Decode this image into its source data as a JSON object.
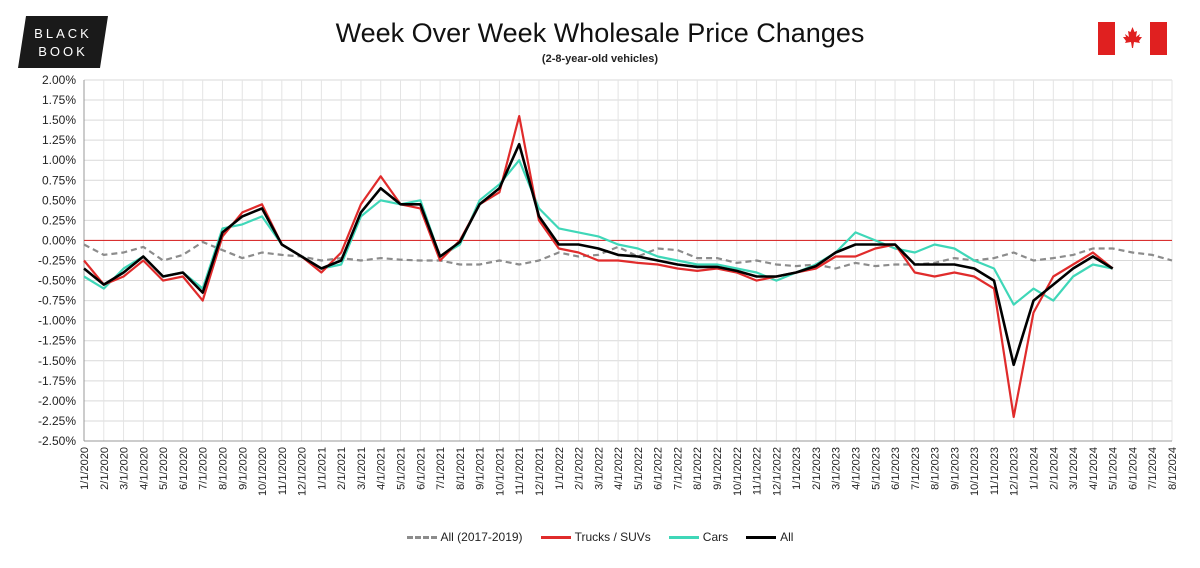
{
  "logo": {
    "line1": "BLACK",
    "line2": "BOOK"
  },
  "flag": "canada-flag-icon",
  "chart_data": {
    "type": "line",
    "title": "Week Over Week Wholesale Price Changes",
    "subtitle": "(2-8-year-old vehicles)",
    "ylim": [
      -2.5,
      2.0
    ],
    "yticks": [
      "2.00%",
      "1.75%",
      "1.50%",
      "1.25%",
      "1.00%",
      "0.75%",
      "0.50%",
      "0.25%",
      "0.00%",
      "-0.25%",
      "-0.50%",
      "-0.75%",
      "-1.00%",
      "-1.25%",
      "-1.50%",
      "-1.75%",
      "-2.00%",
      "-2.25%",
      "-2.50%"
    ],
    "xticks": [
      "1/1/2020",
      "2/1/2020",
      "3/1/2020",
      "4/1/2020",
      "5/1/2020",
      "6/1/2020",
      "7/1/2020",
      "8/1/2020",
      "9/1/2020",
      "10/1/2020",
      "11/1/2020",
      "12/1/2020",
      "1/1/2021",
      "2/1/2021",
      "3/1/2021",
      "4/1/2021",
      "5/1/2021",
      "6/1/2021",
      "7/1/2021",
      "8/1/2021",
      "9/1/2021",
      "10/1/2021",
      "11/1/2021",
      "12/1/2021",
      "1/1/2022",
      "2/1/2022",
      "3/1/2022",
      "4/1/2022",
      "5/1/2022",
      "6/1/2022",
      "7/1/2022",
      "8/1/2022",
      "9/1/2022",
      "10/1/2022",
      "11/1/2022",
      "12/1/2022",
      "1/1/2023",
      "2/1/2023",
      "3/1/2023",
      "4/1/2023",
      "5/1/2023",
      "6/1/2023",
      "7/1/2023",
      "8/1/2023",
      "9/1/2023",
      "10/1/2023",
      "11/1/2023",
      "12/1/2023",
      "1/1/2024",
      "2/1/2024",
      "3/1/2024",
      "4/1/2024",
      "5/1/2024",
      "6/1/2024",
      "7/1/2024",
      "8/1/2024"
    ],
    "grid": true,
    "zero_line_color": "#d93030",
    "legend_position": "bottom",
    "series": [
      {
        "name": "All (2017-2019)",
        "color": "#8c8c8c",
        "dash": true,
        "x_start_month": 0,
        "values": [
          -0.05,
          -0.18,
          -0.15,
          -0.08,
          -0.25,
          -0.18,
          -0.02,
          -0.12,
          -0.22,
          -0.15,
          -0.18,
          -0.2,
          -0.25,
          -0.22,
          -0.25,
          -0.22,
          -0.24,
          -0.25,
          -0.25,
          -0.3,
          -0.3,
          -0.25,
          -0.3,
          -0.25,
          -0.15,
          -0.2,
          -0.18,
          -0.08,
          -0.2,
          -0.1,
          -0.12,
          -0.22,
          -0.22,
          -0.28,
          -0.25,
          -0.3,
          -0.32,
          -0.3,
          -0.35,
          -0.28,
          -0.32,
          -0.3,
          -0.3,
          -0.28,
          -0.22,
          -0.25,
          -0.22,
          -0.15,
          -0.25,
          -0.22,
          -0.18,
          -0.1,
          -0.1,
          -0.15,
          -0.18,
          -0.25
        ]
      },
      {
        "name": "Trucks / SUVs",
        "color": "#e02b2b",
        "dash": false,
        "x_start_month": 0,
        "values": [
          -0.25,
          -0.55,
          -0.45,
          -0.25,
          -0.5,
          -0.45,
          -0.75,
          0.05,
          0.35,
          0.45,
          -0.05,
          -0.2,
          -0.4,
          -0.15,
          0.45,
          0.8,
          0.45,
          0.4,
          -0.25,
          0.0,
          0.45,
          0.6,
          1.55,
          0.25,
          -0.1,
          -0.15,
          -0.25,
          -0.25,
          -0.28,
          -0.3,
          -0.35,
          -0.38,
          -0.35,
          -0.4,
          -0.5,
          -0.45,
          -0.4,
          -0.35,
          -0.2,
          -0.2,
          -0.1,
          -0.05,
          -0.4,
          -0.45,
          -0.4,
          -0.45,
          -0.6,
          -2.2,
          -0.9,
          -0.45,
          -0.3,
          -0.15,
          -0.35
        ]
      },
      {
        "name": "Cars",
        "color": "#3fd7b8",
        "dash": false,
        "x_start_month": 0,
        "values": [
          -0.45,
          -0.6,
          -0.35,
          -0.2,
          -0.45,
          -0.4,
          -0.6,
          0.15,
          0.2,
          0.3,
          -0.05,
          -0.2,
          -0.35,
          -0.3,
          0.3,
          0.5,
          0.45,
          0.5,
          -0.2,
          -0.05,
          0.5,
          0.7,
          1.0,
          0.4,
          0.15,
          0.1,
          0.05,
          -0.05,
          -0.1,
          -0.2,
          -0.25,
          -0.3,
          -0.3,
          -0.35,
          -0.4,
          -0.5,
          -0.4,
          -0.3,
          -0.15,
          0.1,
          0.0,
          -0.1,
          -0.15,
          -0.05,
          -0.1,
          -0.25,
          -0.35,
          -0.8,
          -0.6,
          -0.75,
          -0.45,
          -0.3,
          -0.35
        ]
      },
      {
        "name": "All",
        "color": "#000000",
        "dash": false,
        "x_start_month": 0,
        "values": [
          -0.35,
          -0.55,
          -0.4,
          -0.2,
          -0.45,
          -0.4,
          -0.65,
          0.1,
          0.3,
          0.4,
          -0.05,
          -0.2,
          -0.35,
          -0.25,
          0.35,
          0.65,
          0.45,
          0.45,
          -0.2,
          -0.02,
          0.45,
          0.65,
          1.2,
          0.3,
          -0.05,
          -0.05,
          -0.1,
          -0.18,
          -0.2,
          -0.25,
          -0.3,
          -0.33,
          -0.33,
          -0.38,
          -0.45,
          -0.45,
          -0.4,
          -0.32,
          -0.15,
          -0.05,
          -0.05,
          -0.05,
          -0.3,
          -0.3,
          -0.3,
          -0.35,
          -0.5,
          -1.55,
          -0.75,
          -0.55,
          -0.35,
          -0.2,
          -0.35
        ]
      }
    ]
  },
  "legend": {
    "items": [
      {
        "label": "All (2017-2019)",
        "color": "#8c8c8c",
        "style": "dashed"
      },
      {
        "label": "Trucks / SUVs",
        "color": "#e02b2b",
        "style": "solid"
      },
      {
        "label": "Cars",
        "color": "#3fd7b8",
        "style": "solid"
      },
      {
        "label": "All",
        "color": "#000000",
        "style": "solid"
      }
    ]
  }
}
